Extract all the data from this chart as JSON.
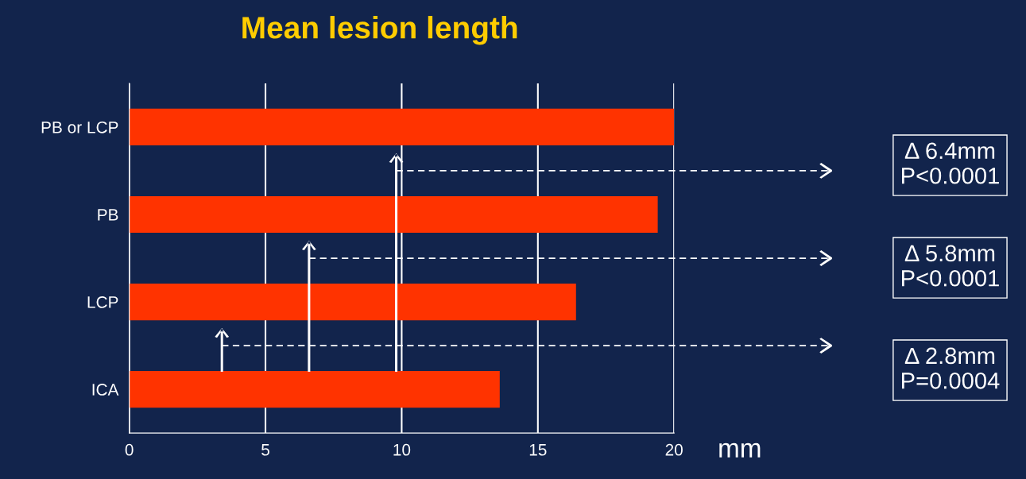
{
  "chart_data": {
    "type": "bar",
    "orientation": "horizontal",
    "title": "Mean lesion length",
    "xlabel": "mm",
    "categories": [
      "PB or LCP",
      "PB",
      "LCP",
      "ICA"
    ],
    "values": [
      20.0,
      19.4,
      16.4,
      13.6
    ],
    "color": "#ff3300",
    "xlim": [
      0,
      20
    ],
    "xticks": [
      0,
      5,
      10,
      15,
      20
    ],
    "grid": "x",
    "annotations": [
      "Δ 6.4mm\nP<0.0001",
      "Δ 5.8mm\nP<0.0001",
      "Δ 2.8mm\nP=0.0004"
    ]
  }
}
